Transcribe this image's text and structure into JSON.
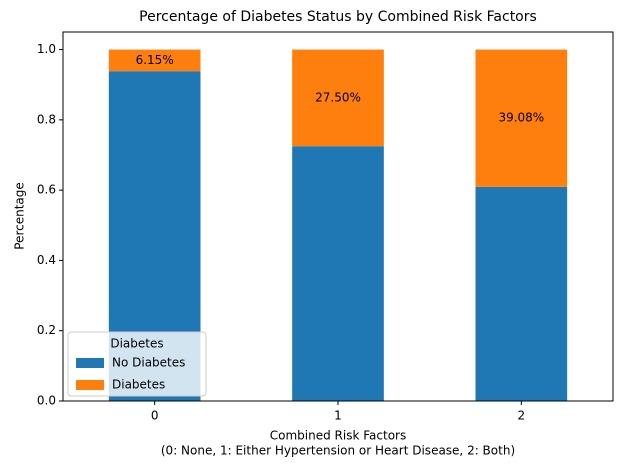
{
  "chart_data": {
    "type": "stacked-bar",
    "title": "Percentage of Diabetes Status by Combined Risk Factors",
    "xlabel": [
      "Combined Risk Factors",
      "(0: None, 1: Either Hypertension or Heart Disease, 2: Both)"
    ],
    "ylabel": "Percentage",
    "categories": [
      "0",
      "1",
      "2"
    ],
    "series": [
      {
        "name": "No Diabetes",
        "color": "#1f77b4",
        "values": [
          0.9385,
          0.725,
          0.6092
        ]
      },
      {
        "name": "Diabetes",
        "color": "#ff7f0e",
        "values": [
          0.0615,
          0.275,
          0.3908
        ],
        "value_labels": [
          "6.15%",
          "27.50%",
          "39.08%"
        ]
      }
    ],
    "ylim": [
      0,
      1.05
    ],
    "yticks": [
      {
        "value": 0,
        "label": "0.0"
      },
      0.2,
      0.4,
      0.6,
      0.8,
      {
        "value": 1,
        "label": "1.0"
      }
    ],
    "grid": false,
    "legend": {
      "title": "Diabetes",
      "position": "lower-left"
    }
  }
}
